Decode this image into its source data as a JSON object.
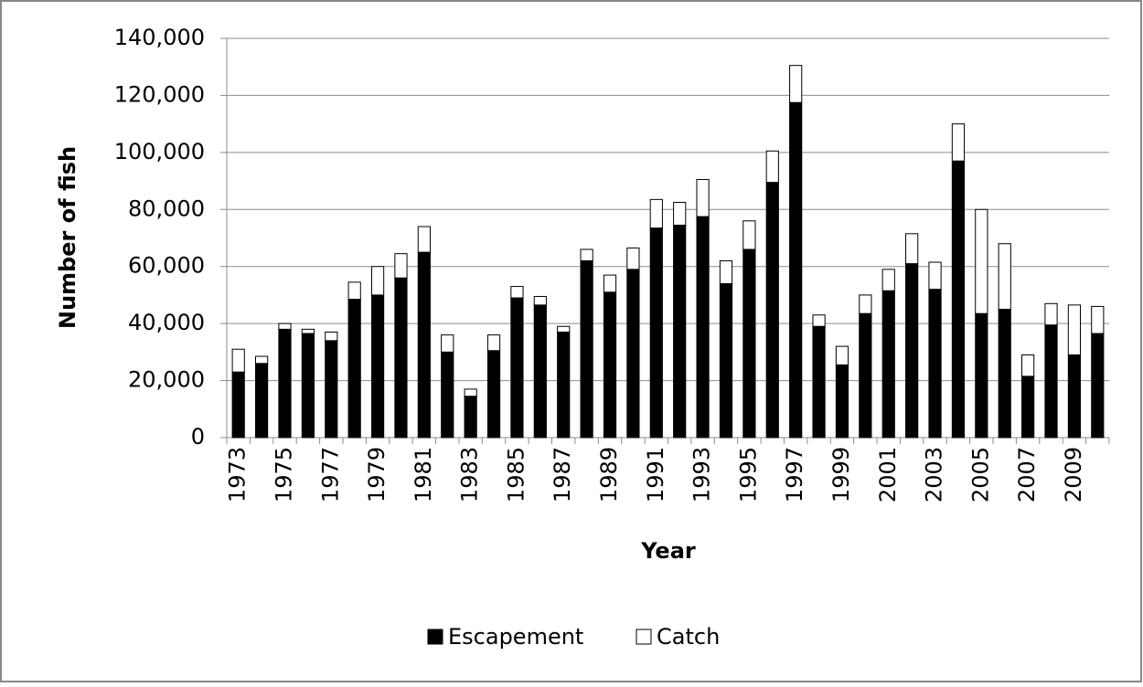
{
  "chart_data": {
    "type": "stacked_bar",
    "categories": [
      "1973",
      null,
      "1975",
      null,
      "1977",
      null,
      "1979",
      null,
      "1981",
      null,
      "1983",
      null,
      "1985",
      null,
      "1987",
      null,
      "1989",
      null,
      "1991",
      null,
      "1993",
      null,
      "1995",
      null,
      "1997",
      null,
      "1999",
      null,
      "2001",
      null,
      "2003",
      null,
      "2005",
      null,
      "2007",
      null,
      "2009",
      null
    ],
    "x_label": "Year",
    "y_label": "Number of fish",
    "series": [
      {
        "name": "Escapement",
        "color": "#000000",
        "values": [
          23000,
          26000,
          38000,
          36500,
          34000,
          48500,
          50000,
          56000,
          65000,
          30000,
          14500,
          30500,
          49000,
          46500,
          37000,
          62000,
          51000,
          59000,
          73500,
          74500,
          77500,
          54000,
          66000,
          89500,
          117500,
          39000,
          25500,
          43500,
          51500,
          61000,
          52000,
          97000,
          43500,
          45000,
          21500,
          39500,
          29000,
          36500
        ]
      },
      {
        "name": "Catch",
        "color": "#ffffff",
        "values": [
          8000,
          2500,
          2000,
          1500,
          3000,
          6000,
          10000,
          8500,
          9000,
          6000,
          2500,
          5500,
          4000,
          3000,
          2000,
          4000,
          6000,
          7500,
          10000,
          8000,
          13000,
          8000,
          10000,
          11000,
          13000,
          4000,
          6500,
          6500,
          7500,
          10500,
          9500,
          13000,
          36500,
          23000,
          7500,
          7500,
          17500,
          9500
        ]
      }
    ],
    "ylim": [
      0,
      140000
    ],
    "yticks": [
      0,
      {
        "value": 20000,
        "label": "20,000"
      },
      {
        "value": 40000,
        "label": "40,000"
      },
      {
        "value": 60000,
        "label": "60,000"
      },
      {
        "value": 80000,
        "label": "80,000"
      },
      {
        "value": 100000,
        "label": "100,000"
      },
      {
        "value": 120000,
        "label": "120,000"
      },
      {
        "value": 140000,
        "label": "140,000"
      }
    ],
    "grid": true,
    "legend": "bottom"
  }
}
